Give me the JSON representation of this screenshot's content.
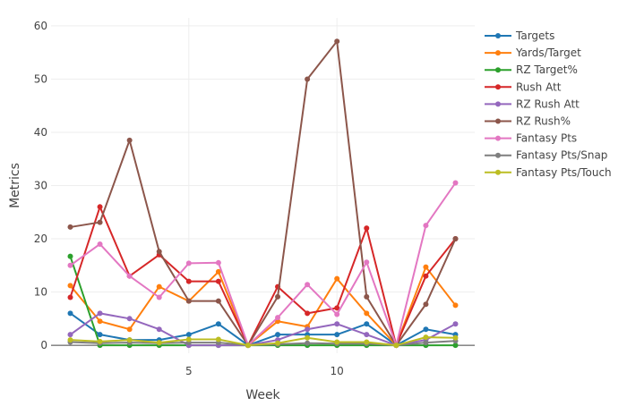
{
  "chart_data": {
    "type": "line",
    "title": "",
    "xlabel": "Week",
    "ylabel": "Metrics",
    "xlim": [
      0.35,
      14.65
    ],
    "ylim": [
      -1.5,
      61.5
    ],
    "x": [
      1,
      2,
      3,
      4,
      5,
      6,
      7,
      8,
      9,
      10,
      11,
      12,
      13,
      14
    ],
    "x_ticks": [
      5,
      10
    ],
    "y_ticks": [
      0,
      10,
      20,
      30,
      40,
      50,
      60
    ],
    "grid": true,
    "legend_position": "right",
    "series": [
      {
        "name": "Targets",
        "color": "#1f77b4",
        "values": [
          6,
          2,
          1,
          1,
          2,
          4,
          0,
          2,
          2,
          2,
          4,
          0,
          3,
          2
        ]
      },
      {
        "name": "Yards/Target",
        "color": "#ff7f0e",
        "values": [
          11.2,
          4.5,
          3,
          11,
          8.3,
          13.8,
          0,
          4.5,
          3.5,
          12.5,
          6,
          0,
          14.7,
          7.5
        ]
      },
      {
        "name": "RZ Target%",
        "color": "#2ca02c",
        "values": [
          16.7,
          0,
          0,
          0,
          0,
          0,
          0,
          0,
          0,
          0,
          0,
          0,
          0,
          0
        ]
      },
      {
        "name": "Rush Att",
        "color": "#d62728",
        "values": [
          9,
          26,
          13,
          17,
          12,
          12,
          0,
          11,
          6,
          7,
          22,
          0,
          13,
          20
        ]
      },
      {
        "name": "RZ Rush Att",
        "color": "#9467bd",
        "values": [
          2,
          6,
          5,
          3,
          0,
          0,
          0,
          1,
          3,
          4,
          2,
          0,
          1,
          4
        ]
      },
      {
        "name": "RZ Rush%",
        "color": "#8c564b",
        "values": [
          22.2,
          23.1,
          38.5,
          17.6,
          8.3,
          8.3,
          0,
          9.1,
          50,
          57.1,
          9.1,
          0,
          7.7,
          20
        ]
      },
      {
        "name": "Fantasy Pts",
        "color": "#e377c2",
        "values": [
          15,
          19,
          13,
          9,
          15.4,
          15.5,
          0,
          5.2,
          11.4,
          5.8,
          15.6,
          0,
          22.5,
          30.5
        ]
      },
      {
        "name": "Fantasy Pts/Snap",
        "color": "#7f7f7f",
        "values": [
          0.6,
          0.4,
          0.5,
          0.4,
          0.5,
          0.5,
          0,
          0.2,
          0.4,
          0.3,
          0.3,
          0,
          0.5,
          0.8
        ]
      },
      {
        "name": "Fantasy Pts/Touch",
        "color": "#bcbd22",
        "values": [
          1,
          0.7,
          1,
          0.5,
          1.1,
          1.1,
          0,
          0.4,
          1.4,
          0.6,
          0.6,
          0,
          1.5,
          1.4
        ]
      }
    ]
  }
}
